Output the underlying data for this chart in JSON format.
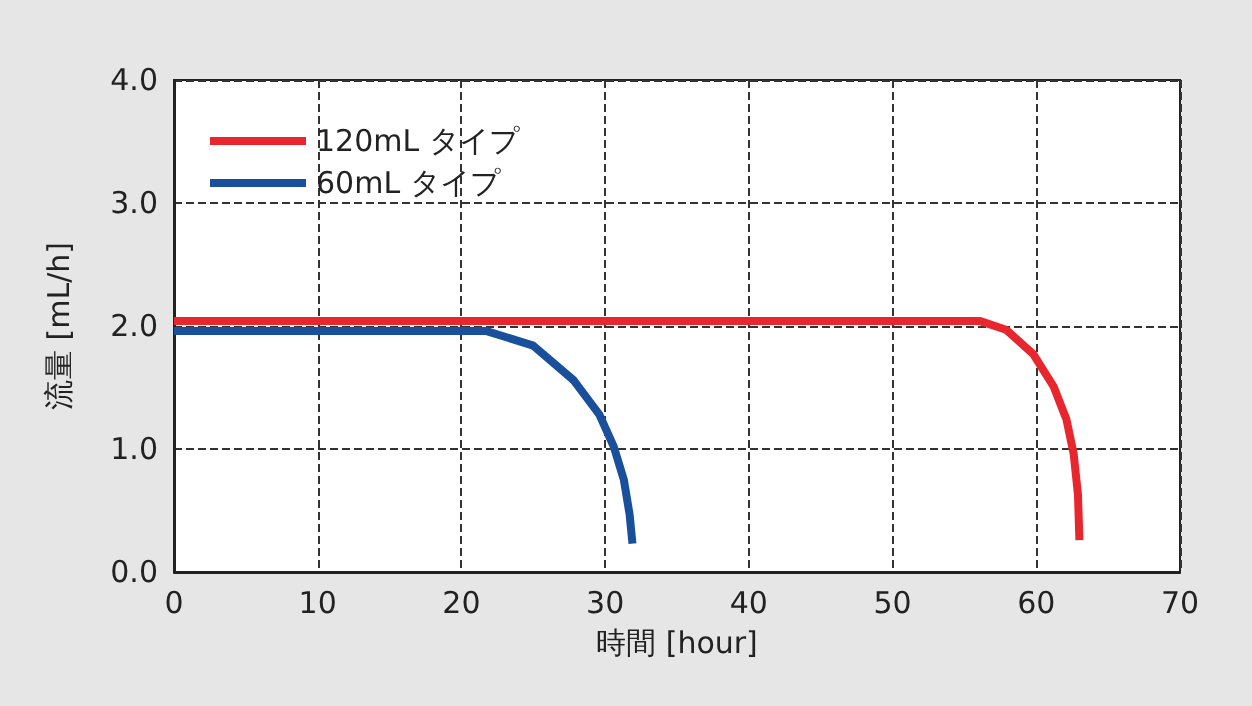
{
  "chart_data": {
    "type": "line",
    "xlabel": "時間 [hour]",
    "ylabel": "流量 [mL/h]",
    "xlim": [
      0,
      70
    ],
    "xticks": [
      0,
      10,
      20,
      30,
      40,
      50,
      60,
      70
    ],
    "ylim": [
      0,
      4
    ],
    "yticks": [
      {
        "value": 0,
        "label": "0.0"
      },
      {
        "value": 1,
        "label": "1.0"
      },
      {
        "value": 2,
        "label": "2.0"
      },
      {
        "value": 3,
        "label": "3.0"
      },
      {
        "value": 4,
        "label": "4.0"
      }
    ],
    "grid": true,
    "legend": "top left",
    "marker": "none",
    "line_style": "solid",
    "series": [
      {
        "name": "120mL タイプ",
        "color": "#e8262d",
        "x": [
          0,
          20,
          40,
          56.1,
          57.9,
          59.8,
          61.2,
          62.1,
          62.6,
          62.9,
          63.0
        ],
        "values": [
          2.04,
          2.04,
          2.04,
          2.04,
          1.97,
          1.77,
          1.51,
          1.24,
          0.96,
          0.63,
          0.26
        ]
      },
      {
        "name": "60mL タイプ",
        "color": "#1a4f9c",
        "x": [
          0,
          10,
          21.7,
          25.0,
          27.8,
          29.6,
          30.6,
          31.3,
          31.7,
          31.9
        ],
        "values": [
          1.96,
          1.96,
          1.96,
          1.84,
          1.56,
          1.28,
          1.02,
          0.75,
          0.47,
          0.23
        ]
      }
    ]
  }
}
